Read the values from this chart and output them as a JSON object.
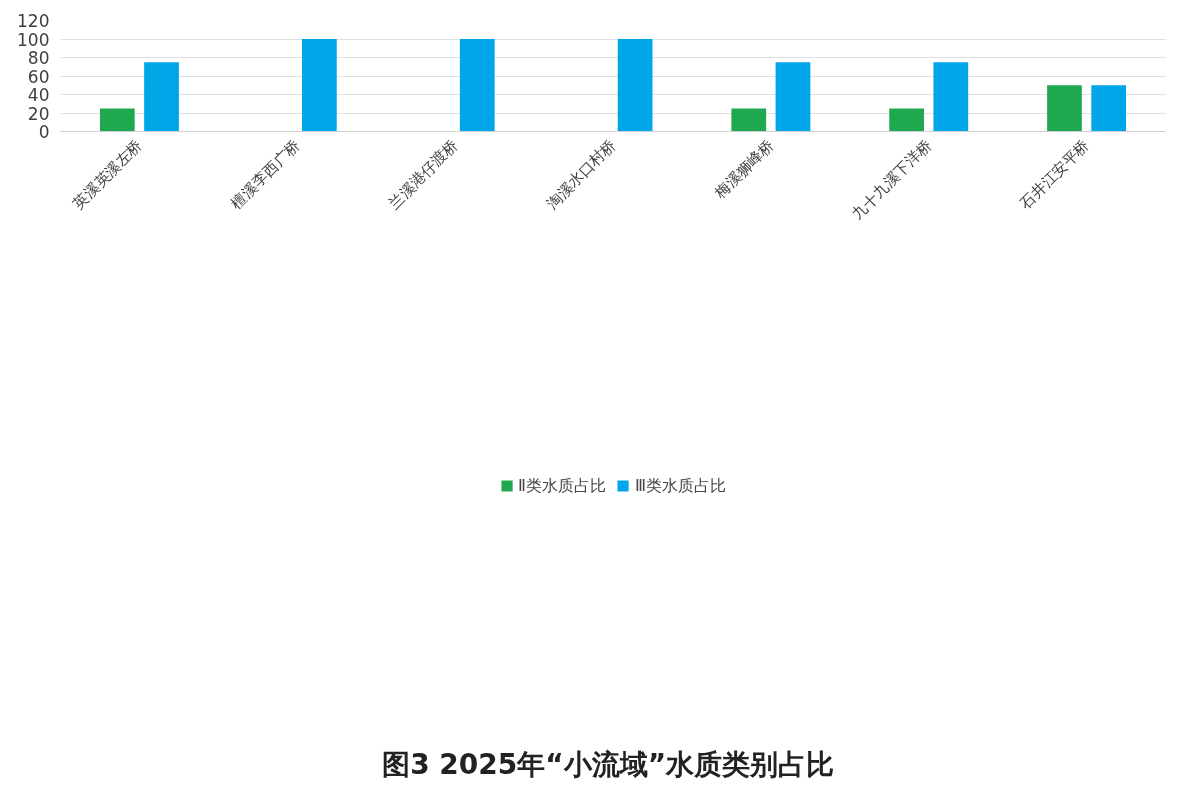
{
  "chart_data": {
    "type": "bar",
    "title": "图3  2025年“小流域”水质类别占比",
    "categories": [
      "英溪英溪左桥",
      "檀溪李西广桥",
      "兰溪港仔渡桥",
      "淘溪水口村桥",
      "梅溪狮峰桥",
      "九十九溪下洋桥",
      "石井江安平桥"
    ],
    "series": [
      {
        "name": "Ⅱ类水质占比",
        "color": "#1fa84f",
        "values": [
          25,
          0,
          0,
          0,
          25,
          25,
          50
        ]
      },
      {
        "name": "Ⅲ类水质占比",
        "color": "#00a6e8",
        "values": [
          75,
          100,
          100,
          100,
          75,
          75,
          50
        ]
      }
    ],
    "ylim": [
      0,
      120
    ],
    "yticks": [
      0,
      20,
      40,
      60,
      80,
      100,
      120
    ],
    "grid": "y",
    "legend": "bottom"
  }
}
